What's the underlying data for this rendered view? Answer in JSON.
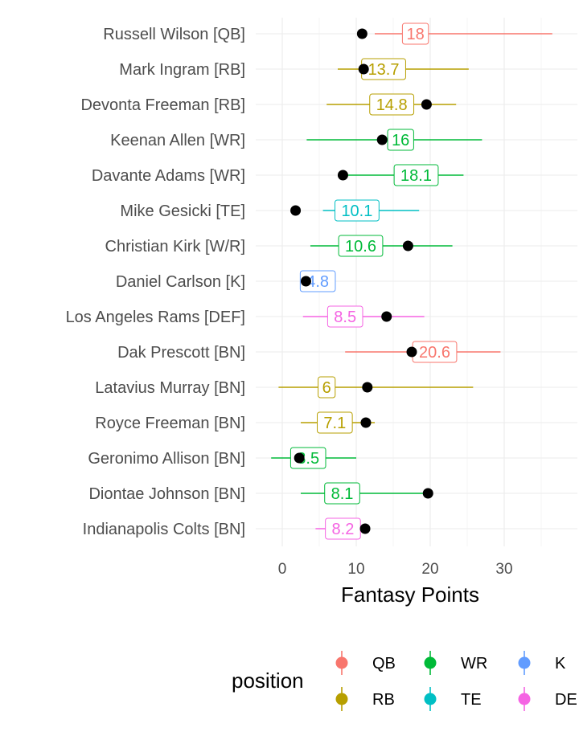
{
  "chart_data": {
    "type": "scatter",
    "xlabel": "Fantasy Points",
    "ylabel": "",
    "xlim": [
      -1.5,
      40
    ],
    "x_ticks": [
      0,
      10,
      20,
      30
    ],
    "grid": true,
    "legend": {
      "title": "position",
      "placement": "bottom",
      "entries": [
        {
          "label": "QB",
          "color": "#F8766D"
        },
        {
          "label": "WR",
          "color": "#00BA38"
        },
        {
          "label": "K",
          "color": "#619CFF"
        },
        {
          "label": "RB",
          "color": "#B79F00"
        },
        {
          "label": "TE",
          "color": "#00BFC4"
        },
        {
          "label": "DE",
          "color": "#F564E3"
        }
      ]
    },
    "players": [
      {
        "name": "Russell Wilson [QB]",
        "position": "QB",
        "projection": 18,
        "low": 12.5,
        "high": 36.5,
        "actual": 10.8
      },
      {
        "name": "Mark Ingram [RB]",
        "position": "RB",
        "projection": 13.7,
        "low": 7.5,
        "high": 25.2,
        "actual": 11.0
      },
      {
        "name": "Devonta Freeman [RB]",
        "position": "RB",
        "projection": 14.8,
        "low": 6.0,
        "high": 23.5,
        "actual": 19.5
      },
      {
        "name": "Keenan Allen [WR]",
        "position": "WR",
        "projection": 16,
        "low": 3.3,
        "high": 27.0,
        "actual": 13.5
      },
      {
        "name": "Davante Adams [WR]",
        "position": "WR",
        "projection": 18.1,
        "low": 8.5,
        "high": 24.5,
        "actual": 8.2
      },
      {
        "name": "Mike Gesicki [TE]",
        "position": "TE",
        "projection": 10.1,
        "low": 5.5,
        "high": 18.5,
        "actual": 1.8
      },
      {
        "name": "Christian Kirk [W/R]",
        "position": "WR",
        "projection": 10.6,
        "low": 3.8,
        "high": 23.0,
        "actual": 17.0
      },
      {
        "name": "Daniel Carlson [K]",
        "position": "K",
        "projection": 4.8,
        "low": 3.0,
        "high": 6.5,
        "actual": 3.2
      },
      {
        "name": "Los Angeles Rams [DEF]",
        "position": "DE",
        "projection": 8.5,
        "low": 2.8,
        "high": 19.2,
        "actual": 14.1
      },
      {
        "name": "Dak Prescott [BN]",
        "position": "QB",
        "projection": 20.6,
        "low": 8.5,
        "high": 29.5,
        "actual": 17.5
      },
      {
        "name": "Latavius Murray [BN]",
        "position": "RB",
        "projection": 6,
        "low": -0.5,
        "high": 25.8,
        "actual": 11.5
      },
      {
        "name": "Royce Freeman [BN]",
        "position": "RB",
        "projection": 7.1,
        "low": 2.5,
        "high": 12.5,
        "actual": 11.3
      },
      {
        "name": "Geronimo Allison [BN]",
        "position": "WR",
        "projection": 3.5,
        "low": -1.5,
        "high": 10.0,
        "actual": 2.3
      },
      {
        "name": "Diontae Johnson [BN]",
        "position": "WR",
        "projection": 8.1,
        "low": 2.5,
        "high": 19.5,
        "actual": 19.7
      },
      {
        "name": "Indianapolis Colts [BN]",
        "position": "DE",
        "projection": 8.2,
        "low": 4.5,
        "high": 11.3,
        "actual": 11.2
      }
    ]
  }
}
